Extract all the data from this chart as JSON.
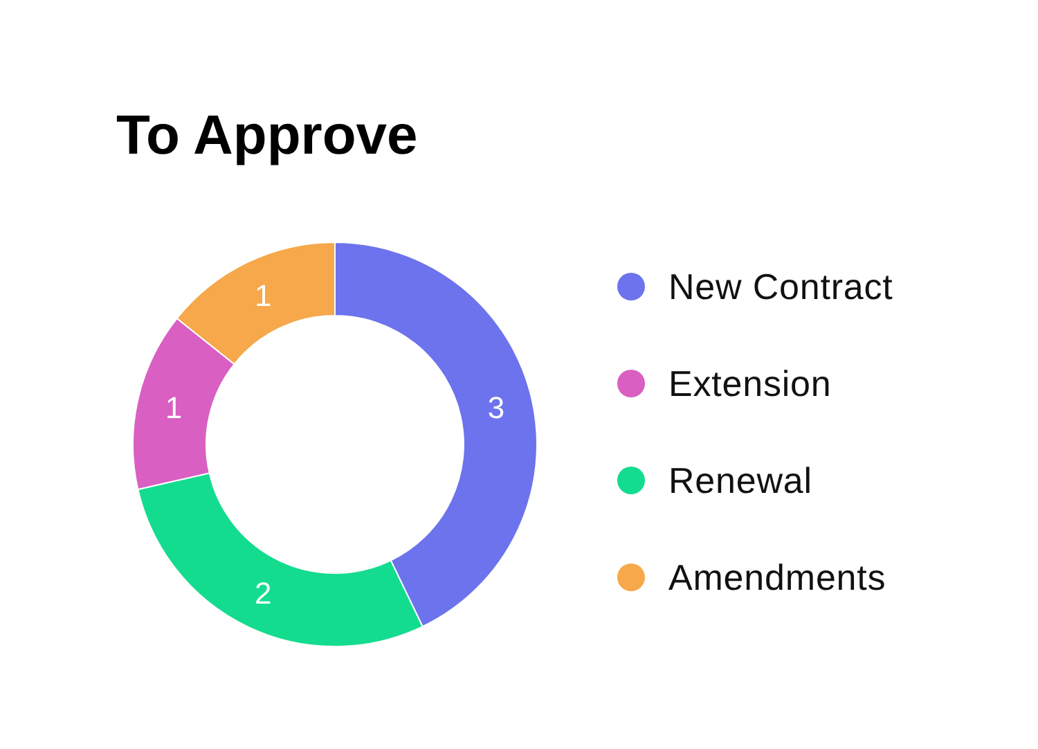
{
  "chart_data": {
    "type": "donut",
    "title": "To Approve",
    "categories": [
      "New Contract",
      "Extension",
      "Renewal",
      "Amendments"
    ],
    "values": [
      3,
      1,
      2,
      1
    ],
    "colors": [
      "#6c73ed",
      "#d95fc3",
      "#14dc8e",
      "#f6a84a"
    ],
    "data_labels": true,
    "legend": "right"
  }
}
